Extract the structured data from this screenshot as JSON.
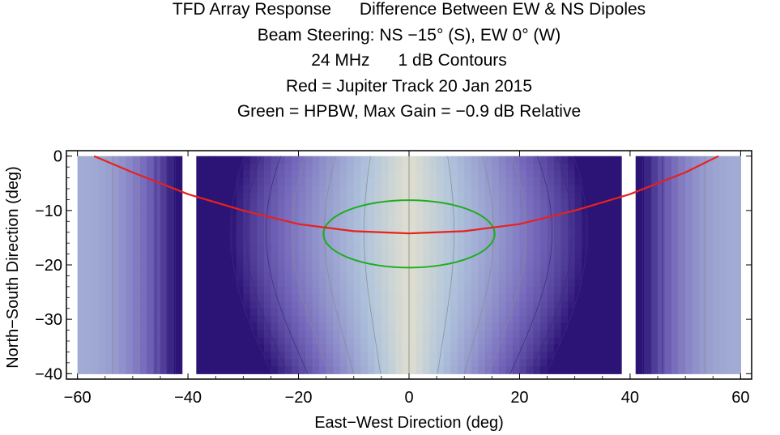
{
  "chart_data": {
    "type": "contour",
    "title_lines": [
      "TFD Array Response      Difference Between EW & NS Dipoles",
      "Beam Steering: NS −15° (S), EW 0° (W)",
      "24 MHz      1 dB Contours",
      "Red = Jupiter Track 20 Jan 2015",
      "Green = HPBW, Max Gain = −0.9 dB Relative"
    ],
    "xlabel": "East−West Direction (deg)",
    "ylabel": "North−South Direction (deg)",
    "xlim": [
      -62,
      62
    ],
    "ylim": [
      -41,
      1
    ],
    "x_ticks": [
      -60,
      -40,
      -20,
      0,
      20,
      40,
      60
    ],
    "x_tick_labels": [
      "−60",
      "−40",
      "−20",
      "0",
      "20",
      "40",
      "60"
    ],
    "y_ticks": [
      0,
      -10,
      -20,
      -30,
      -40
    ],
    "y_tick_labels": [
      "0",
      "−10",
      "−20",
      "−30",
      "−40"
    ],
    "contour_interval_db": 1,
    "data_extent": {
      "x": [
        -60,
        60
      ],
      "y": [
        -40,
        0
      ]
    },
    "gaps_x": [
      [
        -41,
        -38.5
      ],
      [
        38.5,
        41
      ]
    ],
    "jupiter_track": {
      "color": "#e8211d",
      "points": [
        [
          -57,
          0
        ],
        [
          -50,
          -3
        ],
        [
          -40,
          -7
        ],
        [
          -30,
          -10
        ],
        [
          -20,
          -12.5
        ],
        [
          -10,
          -13.8
        ],
        [
          0,
          -14.2
        ],
        [
          10,
          -13.8
        ],
        [
          20,
          -12.5
        ],
        [
          30,
          -10
        ],
        [
          40,
          -7
        ],
        [
          50,
          -3
        ],
        [
          56,
          0
        ]
      ]
    },
    "hpbw": {
      "color": "#1fad1f",
      "center": [
        0,
        -14.3
      ],
      "half_width_x": 15.5,
      "half_height_y": 6.2
    }
  }
}
